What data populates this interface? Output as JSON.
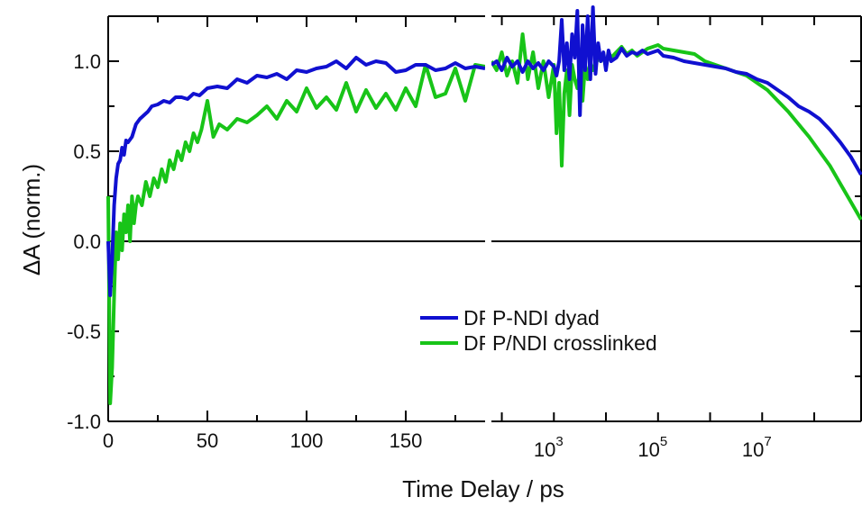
{
  "chart_data": {
    "type": "line",
    "title": "",
    "xlabel": "Time Delay / ps",
    "ylabel": "ΔA (norm.)",
    "ylim": [
      -1.0,
      1.25
    ],
    "yticks": [
      "1.0",
      "0.5",
      "0.0",
      "-0.5",
      "-1.0"
    ],
    "x_axis_split": true,
    "left_panel": {
      "scale": "linear",
      "xlim": [
        0,
        190
      ],
      "xticks": [
        "0",
        "50",
        "100",
        "150"
      ]
    },
    "right_panel": {
      "scale": "log",
      "xlim_log10": [
        1.8,
        8.9
      ],
      "xticks": [
        {
          "base": "10",
          "exp": "3"
        },
        {
          "base": "10",
          "exp": "5"
        },
        {
          "base": "10",
          "exp": "7"
        }
      ]
    },
    "zero_line": true,
    "legend_position": "lower-center",
    "colors": {
      "DPP-NDI dyad": "#1010d0",
      "DPP/NDI crosslinked": "#18c418",
      "axis": "#000000"
    },
    "series": [
      {
        "name": "DPP-NDI dyad",
        "left": {
          "x": [
            0,
            1,
            2,
            3,
            4,
            5,
            6,
            7,
            8,
            9,
            10,
            12,
            14,
            16,
            18,
            20,
            22,
            25,
            28,
            31,
            34,
            37,
            40,
            43,
            46,
            50,
            55,
            60,
            65,
            70,
            75,
            80,
            85,
            90,
            95,
            100,
            105,
            110,
            115,
            120,
            125,
            130,
            135,
            140,
            145,
            150,
            155,
            160,
            165,
            170,
            175,
            180,
            185,
            190
          ],
          "y": [
            0.0,
            -0.3,
            -0.1,
            0.2,
            0.35,
            0.43,
            0.45,
            0.52,
            0.48,
            0.56,
            0.55,
            0.58,
            0.65,
            0.68,
            0.7,
            0.72,
            0.75,
            0.76,
            0.78,
            0.77,
            0.8,
            0.8,
            0.79,
            0.82,
            0.81,
            0.85,
            0.86,
            0.85,
            0.9,
            0.88,
            0.92,
            0.91,
            0.93,
            0.9,
            0.95,
            0.94,
            0.96,
            0.97,
            1.0,
            0.96,
            1.02,
            0.98,
            1.0,
            0.99,
            0.94,
            0.95,
            0.98,
            0.98,
            0.95,
            0.96,
            0.99,
            0.96,
            0.97,
            0.96
          ]
        },
        "right_log10": {
          "x": [
            1.8,
            1.9,
            2.0,
            2.1,
            2.2,
            2.3,
            2.4,
            2.5,
            2.6,
            2.7,
            2.8,
            2.9,
            3.0,
            3.05,
            3.1,
            3.15,
            3.2,
            3.25,
            3.3,
            3.35,
            3.4,
            3.45,
            3.5,
            3.55,
            3.6,
            3.65,
            3.7,
            3.75,
            3.8,
            3.85,
            3.9,
            3.95,
            4.0,
            4.05,
            4.1,
            4.2,
            4.3,
            4.4,
            4.5,
            4.6,
            4.7,
            4.8,
            4.9,
            5.0,
            5.1,
            5.3,
            5.5,
            5.7,
            5.9,
            6.1,
            6.3,
            6.5,
            6.7,
            6.9,
            7.1,
            7.3,
            7.5,
            7.7,
            7.9,
            8.1,
            8.3,
            8.5,
            8.7,
            8.9
          ],
          "y": [
            0.98,
            1.0,
            0.95,
            1.02,
            0.97,
            1.0,
            0.94,
            1.0,
            0.96,
            0.99,
            0.95,
            1.0,
            0.97,
            0.92,
            1.0,
            1.23,
            0.95,
            1.1,
            0.9,
            1.15,
            1.02,
            1.28,
            0.7,
            1.2,
            0.95,
            1.25,
            0.9,
            1.3,
            0.93,
            1.1,
            1.0,
            1.05,
            0.95,
            1.06,
            1.0,
            1.02,
            1.07,
            1.03,
            1.05,
            1.04,
            1.06,
            1.04,
            1.05,
            1.06,
            1.03,
            1.02,
            1.0,
            0.99,
            0.98,
            0.97,
            0.96,
            0.94,
            0.93,
            0.9,
            0.88,
            0.84,
            0.8,
            0.75,
            0.72,
            0.68,
            0.62,
            0.55,
            0.47,
            0.37
          ]
        }
      },
      {
        "name": "DPP/NDI crosslinked",
        "left": {
          "x": [
            0,
            1,
            2,
            3,
            4,
            5,
            6,
            7,
            8,
            9,
            10,
            11,
            12,
            13,
            14,
            15,
            17,
            19,
            21,
            23,
            25,
            27,
            29,
            31,
            33,
            35,
            37,
            39,
            41,
            43,
            45,
            47,
            50,
            53,
            56,
            60,
            65,
            70,
            75,
            80,
            85,
            90,
            95,
            100,
            105,
            110,
            115,
            120,
            125,
            130,
            135,
            140,
            145,
            150,
            155,
            160,
            165,
            170,
            175,
            180,
            185,
            190
          ],
          "y": [
            0.25,
            -0.9,
            -0.7,
            -0.3,
            0.05,
            -0.1,
            0.1,
            -0.05,
            0.15,
            0.05,
            0.2,
            0.0,
            0.25,
            0.1,
            0.2,
            0.25,
            0.2,
            0.33,
            0.25,
            0.35,
            0.3,
            0.4,
            0.33,
            0.45,
            0.4,
            0.5,
            0.45,
            0.55,
            0.5,
            0.6,
            0.55,
            0.62,
            0.78,
            0.58,
            0.65,
            0.62,
            0.68,
            0.66,
            0.7,
            0.75,
            0.68,
            0.78,
            0.72,
            0.85,
            0.74,
            0.8,
            0.73,
            0.88,
            0.72,
            0.84,
            0.74,
            0.82,
            0.73,
            0.85,
            0.75,
            0.98,
            0.8,
            0.82,
            0.96,
            0.78,
            0.98,
            0.97
          ]
        },
        "right_log10": {
          "x": [
            1.8,
            1.9,
            2.0,
            2.1,
            2.2,
            2.3,
            2.4,
            2.5,
            2.6,
            2.7,
            2.8,
            2.9,
            3.0,
            3.05,
            3.1,
            3.15,
            3.2,
            3.25,
            3.3,
            3.35,
            3.4,
            3.45,
            3.5,
            3.55,
            3.6,
            3.65,
            3.7,
            3.75,
            3.8,
            3.85,
            3.9,
            3.95,
            4.0,
            4.05,
            4.1,
            4.2,
            4.3,
            4.4,
            4.5,
            4.6,
            4.7,
            4.8,
            4.9,
            5.0,
            5.1,
            5.3,
            5.5,
            5.7,
            5.9,
            6.1,
            6.3,
            6.5,
            6.7,
            6.9,
            7.1,
            7.3,
            7.5,
            7.7,
            7.9,
            8.1,
            8.3,
            8.5,
            8.7,
            8.9
          ],
          "y": [
            1.0,
            0.95,
            1.05,
            0.92,
            1.0,
            0.88,
            1.15,
            0.9,
            1.05,
            0.85,
            1.0,
            0.8,
            0.98,
            0.6,
            0.88,
            0.42,
            0.82,
            0.95,
            0.7,
            0.98,
            0.9,
            0.85,
            0.95,
            0.78,
            0.98,
            0.9,
            1.0,
            0.95,
            0.98,
            1.02,
            1.0,
            1.03,
            0.97,
            1.05,
            1.02,
            1.05,
            1.08,
            1.04,
            1.06,
            1.03,
            1.05,
            1.07,
            1.08,
            1.09,
            1.07,
            1.06,
            1.05,
            1.04,
            1.0,
            0.98,
            0.96,
            0.94,
            0.92,
            0.88,
            0.84,
            0.78,
            0.72,
            0.65,
            0.58,
            0.5,
            0.42,
            0.32,
            0.22,
            0.12
          ]
        }
      }
    ]
  }
}
